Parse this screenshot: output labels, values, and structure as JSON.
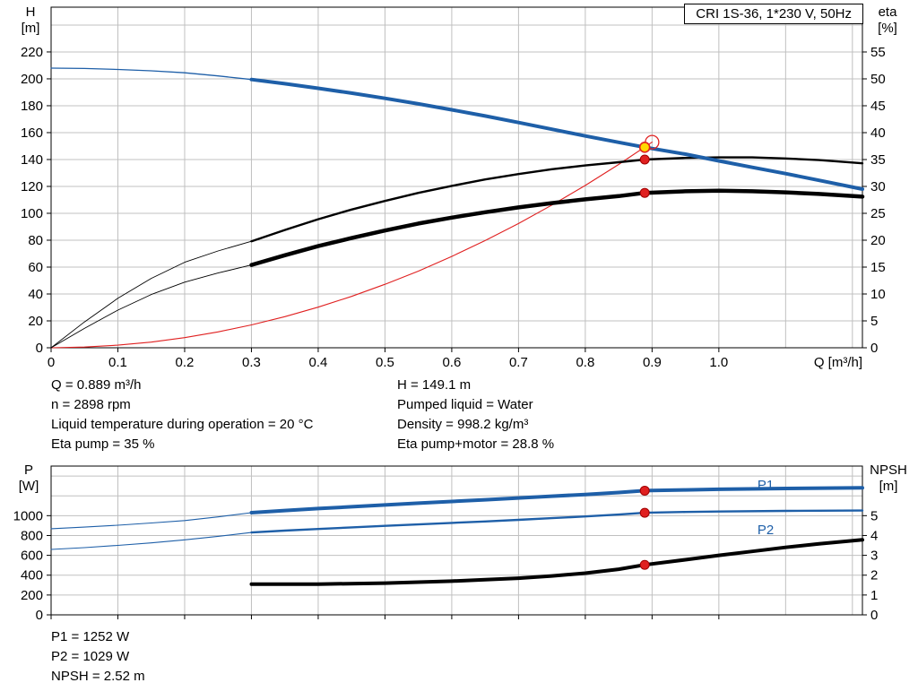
{
  "title_box": "CRI 1S-36, 1*230 V, 50Hz",
  "colors": {
    "blue": "#1e5fa8",
    "black": "#000000",
    "red": "#e02020",
    "yellow": "#ffd800",
    "grid": "#c0c0c0"
  },
  "axis_headers": {
    "top_left": [
      "H",
      "[m]"
    ],
    "top_right": [
      "eta",
      "[%]"
    ],
    "bottom_left": [
      "P",
      "[W]"
    ],
    "bottom_right": [
      "NPSH",
      "[m]"
    ],
    "x_label": "Q [m³/h]"
  },
  "info_top": {
    "left": [
      "Q = 0.889 m³/h",
      "n = 2898 rpm",
      "Liquid temperature during operation = 20 °C",
      "Eta pump = 35 %"
    ],
    "right": [
      "H = 149.1 m",
      "Pumped liquid = Water",
      "Density = 998.2 kg/m³",
      "Eta pump+motor = 28.8 %"
    ]
  },
  "info_bottom": [
    "P1 = 1252 W",
    "P2 = 1029 W",
    "NPSH = 2.52 m"
  ],
  "chart_data": [
    {
      "type": "line",
      "name": "qh-eta-chart",
      "title": "CRI 1S-36, 1*230 V, 50Hz",
      "xlabel": "Q [m³/h]",
      "ylabel_left": "H [m]",
      "ylabel_right": "eta [%]",
      "xlim": [
        0,
        1.215
      ],
      "ylim_left": [
        0,
        253.3
      ],
      "ylim_right": [
        0,
        63.33
      ],
      "grid_x_step": 0.1,
      "grid_y_step": 20,
      "x_ticks": [
        "0",
        "0.1",
        "0.2",
        "0.3",
        "0.4",
        "0.5",
        "0.6",
        "0.7",
        "0.8",
        "0.9",
        "1.0"
      ],
      "x_tick_labels": true,
      "y_ticks_left": [
        "0",
        "20",
        "40",
        "60",
        "80",
        "100",
        "120",
        "140",
        "160",
        "180",
        "200",
        "220"
      ],
      "y_ticks_right": [
        "0",
        "5",
        "10",
        "15",
        "20",
        "25",
        "30",
        "35",
        "40",
        "45",
        "50",
        "55"
      ],
      "series": [
        {
          "name": "duty-parabola",
          "axis": "left",
          "color": "red",
          "width": 1.1,
          "width_thin": 1.1,
          "thin_until": 0,
          "points": [
            [
              0,
              0
            ],
            [
              0.05,
              0.5
            ],
            [
              0.1,
              1.9
            ],
            [
              0.15,
              4.2
            ],
            [
              0.2,
              7.5
            ],
            [
              0.25,
              11.8
            ],
            [
              0.3,
              17
            ],
            [
              0.35,
              23.1
            ],
            [
              0.4,
              30.2
            ],
            [
              0.45,
              38.2
            ],
            [
              0.5,
              47.2
            ],
            [
              0.55,
              57
            ],
            [
              0.6,
              67.9
            ],
            [
              0.65,
              79.7
            ],
            [
              0.7,
              92.4
            ],
            [
              0.75,
              106.1
            ],
            [
              0.8,
              120.7
            ],
            [
              0.85,
              136.3
            ],
            [
              0.9,
              152.9
            ]
          ]
        },
        {
          "name": "eta-pump",
          "axis": "right",
          "color": "black",
          "width": 2.4,
          "width_thin": 0.9,
          "thin_until": 0.3,
          "points": [
            [
              0,
              0
            ],
            [
              0.05,
              4.8
            ],
            [
              0.1,
              9.2
            ],
            [
              0.15,
              12.9
            ],
            [
              0.2,
              15.9
            ],
            [
              0.25,
              18
            ],
            [
              0.3,
              19.8
            ],
            [
              0.35,
              21.9
            ],
            [
              0.4,
              23.9
            ],
            [
              0.45,
              25.7
            ],
            [
              0.5,
              27.3
            ],
            [
              0.55,
              28.8
            ],
            [
              0.6,
              30.1
            ],
            [
              0.65,
              31.3
            ],
            [
              0.7,
              32.3
            ],
            [
              0.75,
              33.2
            ],
            [
              0.8,
              33.9
            ],
            [
              0.85,
              34.5
            ],
            [
              0.889,
              35
            ],
            [
              0.95,
              35.3
            ],
            [
              1.0,
              35.4
            ],
            [
              1.05,
              35.4
            ],
            [
              1.1,
              35.2
            ],
            [
              1.15,
              34.9
            ],
            [
              1.215,
              34.3
            ]
          ]
        },
        {
          "name": "eta-pump-motor",
          "axis": "right",
          "color": "black",
          "width": 4.5,
          "width_thin": 0.9,
          "thin_until": 0.3,
          "points": [
            [
              0,
              0
            ],
            [
              0.05,
              3.6
            ],
            [
              0.1,
              7
            ],
            [
              0.15,
              9.9
            ],
            [
              0.2,
              12.2
            ],
            [
              0.25,
              13.9
            ],
            [
              0.3,
              15.4
            ],
            [
              0.35,
              17.2
            ],
            [
              0.4,
              18.9
            ],
            [
              0.45,
              20.4
            ],
            [
              0.5,
              21.8
            ],
            [
              0.55,
              23.1
            ],
            [
              0.6,
              24.2
            ],
            [
              0.65,
              25.2
            ],
            [
              0.7,
              26.1
            ],
            [
              0.75,
              26.9
            ],
            [
              0.8,
              27.6
            ],
            [
              0.85,
              28.2
            ],
            [
              0.889,
              28.8
            ],
            [
              0.95,
              29.1
            ],
            [
              1.0,
              29.2
            ],
            [
              1.05,
              29.1
            ],
            [
              1.1,
              28.9
            ],
            [
              1.15,
              28.6
            ],
            [
              1.215,
              28.1
            ]
          ]
        },
        {
          "name": "qh-curve",
          "axis": "left",
          "color": "blue",
          "width": 4,
          "width_thin": 1.3,
          "thin_until": 0.3,
          "points": [
            [
              0,
              208
            ],
            [
              0.05,
              207.7
            ],
            [
              0.1,
              207
            ],
            [
              0.15,
              206
            ],
            [
              0.2,
              204.5
            ],
            [
              0.25,
              202.2
            ],
            [
              0.3,
              199.5
            ],
            [
              0.35,
              196.4
            ],
            [
              0.4,
              193
            ],
            [
              0.45,
              189.4
            ],
            [
              0.5,
              185.5
            ],
            [
              0.55,
              181.4
            ],
            [
              0.6,
              177
            ],
            [
              0.65,
              172.4
            ],
            [
              0.7,
              167.5
            ],
            [
              0.75,
              162.5
            ],
            [
              0.8,
              157.5
            ],
            [
              0.85,
              152.8
            ],
            [
              0.889,
              149.1
            ],
            [
              0.95,
              144
            ],
            [
              1.0,
              139
            ],
            [
              1.05,
              134.2
            ],
            [
              1.1,
              129.5
            ],
            [
              1.15,
              124.5
            ],
            [
              1.215,
              118
            ]
          ]
        }
      ],
      "annotations": [],
      "markers": [
        {
          "style": "open-red",
          "axis": "left",
          "x": 0.9,
          "y": 152.9
        },
        {
          "style": "red-dot",
          "axis": "right",
          "x": 0.889,
          "y": 35
        },
        {
          "style": "red-dot",
          "axis": "right",
          "x": 0.889,
          "y": 28.8
        },
        {
          "style": "yellow-dot",
          "axis": "left",
          "x": 0.889,
          "y": 149.1
        }
      ]
    },
    {
      "type": "line",
      "name": "power-npsh-chart",
      "title": "",
      "xlabel": "",
      "ylabel_left": "P [W]",
      "ylabel_right": "NPSH [m]",
      "xlim": [
        0,
        1.215
      ],
      "ylim_left": [
        0,
        1500
      ],
      "ylim_right": [
        0,
        7.5
      ],
      "grid_x_step": 0.1,
      "grid_y_step": 200,
      "x_ticks": [
        "0",
        "0.1",
        "0.2",
        "0.3",
        "0.4",
        "0.5",
        "0.6",
        "0.7",
        "0.8",
        "0.9",
        "1.0"
      ],
      "x_tick_labels": false,
      "y_ticks_left": [
        "0",
        "200",
        "400",
        "600",
        "800",
        "1000"
      ],
      "y_ticks_right": [
        "0",
        "1",
        "2",
        "3",
        "4",
        "5"
      ],
      "series": [
        {
          "name": "p1-curve",
          "axis": "left",
          "color": "blue",
          "width": 4,
          "width_thin": 1.1,
          "thin_until": 0.3,
          "points": [
            [
              0,
              868
            ],
            [
              0.05,
              885
            ],
            [
              0.1,
              904
            ],
            [
              0.15,
              926
            ],
            [
              0.2,
              951
            ],
            [
              0.25,
              988
            ],
            [
              0.3,
              1030
            ],
            [
              0.35,
              1052
            ],
            [
              0.4,
              1072
            ],
            [
              0.45,
              1090
            ],
            [
              0.5,
              1108
            ],
            [
              0.55,
              1126
            ],
            [
              0.6,
              1143
            ],
            [
              0.65,
              1160
            ],
            [
              0.7,
              1178
            ],
            [
              0.75,
              1196
            ],
            [
              0.8,
              1214
            ],
            [
              0.85,
              1233
            ],
            [
              0.889,
              1252
            ],
            [
              0.95,
              1260
            ],
            [
              1.0,
              1266
            ],
            [
              1.1,
              1274
            ],
            [
              1.215,
              1280
            ]
          ]
        },
        {
          "name": "p2-curve",
          "axis": "left",
          "color": "blue",
          "width": 2.4,
          "width_thin": 1.1,
          "thin_until": 0.3,
          "points": [
            [
              0,
              660
            ],
            [
              0.05,
              678
            ],
            [
              0.1,
              700
            ],
            [
              0.15,
              726
            ],
            [
              0.2,
              756
            ],
            [
              0.25,
              792
            ],
            [
              0.3,
              830
            ],
            [
              0.35,
              849
            ],
            [
              0.4,
              866
            ],
            [
              0.45,
              882
            ],
            [
              0.5,
              897
            ],
            [
              0.55,
              912
            ],
            [
              0.6,
              927
            ],
            [
              0.65,
              942
            ],
            [
              0.7,
              958
            ],
            [
              0.75,
              975
            ],
            [
              0.8,
              992
            ],
            [
              0.85,
              1011
            ],
            [
              0.889,
              1029
            ],
            [
              0.95,
              1037
            ],
            [
              1.0,
              1042
            ],
            [
              1.1,
              1048
            ],
            [
              1.215,
              1052
            ]
          ]
        },
        {
          "name": "npsh-curve",
          "axis": "right",
          "color": "black",
          "width": 4,
          "width_thin": 4,
          "thin_until": 0,
          "points": [
            [
              0.3,
              1.55
            ],
            [
              0.4,
              1.55
            ],
            [
              0.5,
              1.6
            ],
            [
              0.6,
              1.7
            ],
            [
              0.65,
              1.77
            ],
            [
              0.7,
              1.85
            ],
            [
              0.75,
              1.96
            ],
            [
              0.8,
              2.1
            ],
            [
              0.85,
              2.3
            ],
            [
              0.889,
              2.52
            ],
            [
              0.95,
              2.78
            ],
            [
              1.0,
              3.0
            ],
            [
              1.05,
              3.2
            ],
            [
              1.1,
              3.4
            ],
            [
              1.15,
              3.58
            ],
            [
              1.215,
              3.78
            ]
          ]
        }
      ],
      "annotations": [
        {
          "text": "P1",
          "x": 1.07,
          "y": 1310,
          "axis": "left",
          "color": "blue"
        },
        {
          "text": "P2",
          "x": 1.07,
          "y": 860,
          "axis": "left",
          "color": "blue"
        }
      ],
      "markers": [
        {
          "style": "red-dot",
          "axis": "left",
          "x": 0.889,
          "y": 1252
        },
        {
          "style": "red-dot",
          "axis": "left",
          "x": 0.889,
          "y": 1029
        },
        {
          "style": "red-dot",
          "axis": "right",
          "x": 0.889,
          "y": 2.52
        }
      ]
    }
  ]
}
